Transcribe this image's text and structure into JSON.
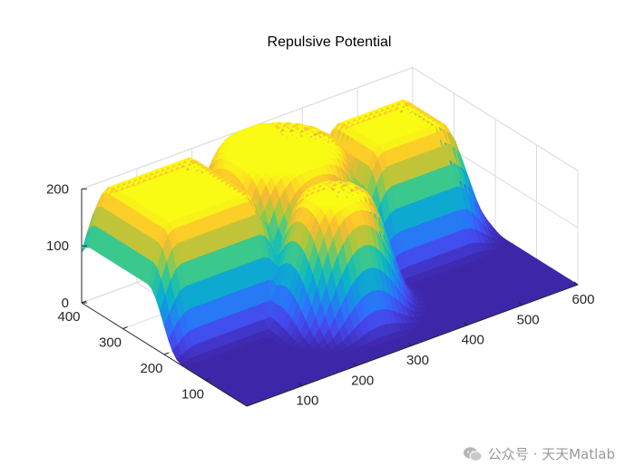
{
  "chart_data": {
    "type": "surface",
    "title": "Repulsive Potential",
    "xlabel": "",
    "ylabel": "",
    "zlabel": "",
    "xlim": [
      0,
      600
    ],
    "ylim": [
      0,
      400
    ],
    "zlim": [
      0,
      200
    ],
    "x_ticks": [
      100,
      200,
      300,
      400,
      500,
      600
    ],
    "y_ticks": [
      100,
      200,
      300,
      400
    ],
    "z_ticks": [
      0,
      100,
      200
    ],
    "grid": true,
    "colormap": "parula",
    "obstacles": [
      {
        "shape": "rectangle",
        "x": [
          40,
          180
        ],
        "y": [
          240,
          380
        ],
        "value": 200
      },
      {
        "shape": "circle",
        "center": [
          300,
          320
        ],
        "radius": 80,
        "value": 200
      },
      {
        "shape": "rectangle",
        "x": [
          420,
          530
        ],
        "y": [
          240,
          330
        ],
        "value": 200
      },
      {
        "shape": "circle",
        "center": [
          280,
          160
        ],
        "radius": 40,
        "value": 200
      }
    ],
    "influence_distance": 100
  },
  "watermark": {
    "text": "公众号 · 天天Matlab",
    "icon": "wechat-icon"
  }
}
